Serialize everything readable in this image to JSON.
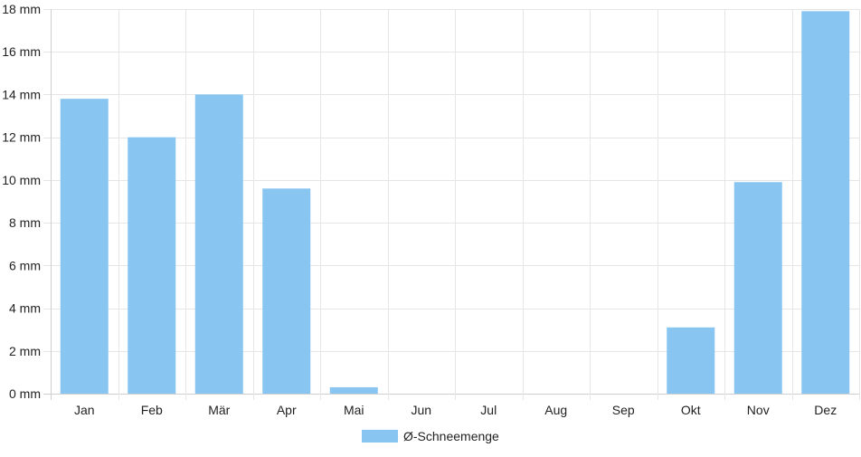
{
  "chart_data": {
    "type": "bar",
    "categories": [
      "Jan",
      "Feb",
      "Mär",
      "Apr",
      "Mai",
      "Jun",
      "Jul",
      "Aug",
      "Sep",
      "Okt",
      "Nov",
      "Dez"
    ],
    "series": [
      {
        "name": "Ø-Schneemenge",
        "values": [
          13.8,
          12.0,
          14.0,
          9.6,
          0.3,
          0,
          0,
          0,
          0,
          3.1,
          9.9,
          17.9
        ],
        "color": "#88c5f1"
      }
    ],
    "y_unit": "mm",
    "ylim": [
      0,
      18
    ],
    "yticks": [
      0,
      2,
      4,
      6,
      8,
      10,
      12,
      14,
      16,
      18
    ],
    "grid": true,
    "legend_position": "bottom-center"
  }
}
